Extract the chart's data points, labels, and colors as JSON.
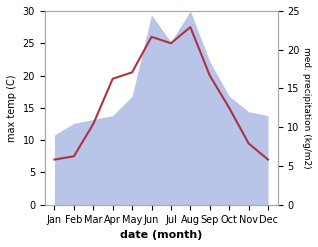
{
  "months": [
    "Jan",
    "Feb",
    "Mar",
    "Apr",
    "May",
    "Jun",
    "Jul",
    "Aug",
    "Sep",
    "Oct",
    "Nov",
    "Dec"
  ],
  "x_positions": [
    0,
    1,
    2,
    3,
    4,
    5,
    6,
    7,
    8,
    9,
    10,
    11
  ],
  "temperature": [
    7.0,
    7.5,
    12.5,
    19.5,
    20.5,
    26.0,
    25.0,
    27.5,
    20.0,
    15.0,
    9.5,
    7.0
  ],
  "precipitation": [
    9.0,
    10.5,
    11.0,
    11.5,
    14.0,
    24.5,
    21.0,
    25.0,
    18.5,
    14.0,
    12.0,
    11.5
  ],
  "temp_color": "#aa3344",
  "precip_color": "#b8c4e8",
  "ylabel_left": "max temp (C)",
  "ylabel_right": "med. precipitation (kg/m2)",
  "xlabel": "date (month)",
  "ylim_left": [
    0,
    30
  ],
  "ylim_right": [
    0,
    25
  ],
  "yticks_left": [
    0,
    5,
    10,
    15,
    20,
    25,
    30
  ],
  "yticks_right": [
    0,
    5,
    10,
    15,
    20,
    25
  ],
  "background_color": "#ffffff"
}
